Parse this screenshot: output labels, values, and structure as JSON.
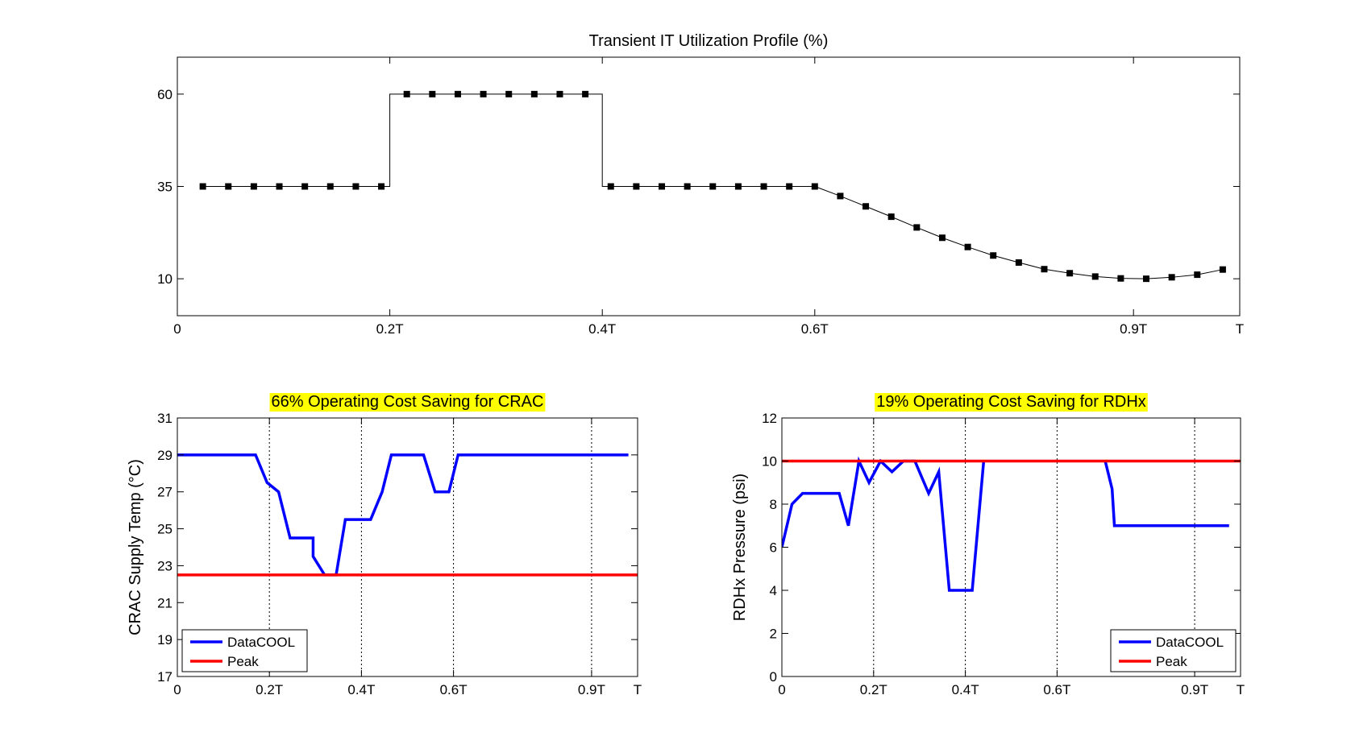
{
  "figure": {
    "background": "#ffffff",
    "colors": {
      "datacool": "#0000ff",
      "peak": "#ff0000",
      "profile": "#000000",
      "highlight": "#ffff00"
    }
  },
  "chart_data": [
    {
      "id": "utilization",
      "type": "line",
      "title": "Transient IT Utilization Profile (%)",
      "title_highlight": false,
      "xlabel": "",
      "ylabel": "",
      "xlim": [
        0,
        1
      ],
      "ylim": [
        0,
        70
      ],
      "xticks": [
        {
          "v": 0,
          "label": "0"
        },
        {
          "v": 0.2,
          "label": "0.2T"
        },
        {
          "v": 0.4,
          "label": "0.4T"
        },
        {
          "v": 0.6,
          "label": "0.6T"
        },
        {
          "v": 0.9,
          "label": "0.9T"
        },
        {
          "v": 1.0,
          "label": "T"
        }
      ],
      "yticks": [
        {
          "v": 10,
          "label": "10"
        },
        {
          "v": 35,
          "label": "35"
        },
        {
          "v": 60,
          "label": "60"
        }
      ],
      "grid": false,
      "vgrid": [],
      "series": [
        {
          "name": "",
          "color": "#000000",
          "width": 1,
          "marker": "square",
          "line": [
            [
              0.024,
              35
            ],
            [
              0.2,
              35
            ],
            [
              0.2,
              60
            ],
            [
              0.4,
              60
            ],
            [
              0.4,
              35
            ],
            [
              0.6,
              35
            ],
            [
              0.624,
              32.4
            ],
            [
              0.648,
              29.6
            ],
            [
              0.672,
              26.8
            ],
            [
              0.696,
              23.9
            ],
            [
              0.72,
              21.1
            ],
            [
              0.744,
              18.6
            ],
            [
              0.768,
              16.3
            ],
            [
              0.792,
              14.4
            ],
            [
              0.816,
              12.6
            ],
            [
              0.84,
              11.5
            ],
            [
              0.864,
              10.6
            ],
            [
              0.888,
              10.1
            ],
            [
              0.912,
              10.0
            ],
            [
              0.936,
              10.4
            ],
            [
              0.96,
              11.1
            ],
            [
              0.984,
              12.5
            ]
          ],
          "markers": [
            [
              0.024,
              35
            ],
            [
              0.048,
              35
            ],
            [
              0.072,
              35
            ],
            [
              0.096,
              35
            ],
            [
              0.12,
              35
            ],
            [
              0.144,
              35
            ],
            [
              0.168,
              35
            ],
            [
              0.192,
              35
            ],
            [
              0.216,
              60
            ],
            [
              0.24,
              60
            ],
            [
              0.264,
              60
            ],
            [
              0.288,
              60
            ],
            [
              0.312,
              60
            ],
            [
              0.336,
              60
            ],
            [
              0.36,
              60
            ],
            [
              0.384,
              60
            ],
            [
              0.408,
              35
            ],
            [
              0.432,
              35
            ],
            [
              0.456,
              35
            ],
            [
              0.48,
              35
            ],
            [
              0.504,
              35
            ],
            [
              0.528,
              35
            ],
            [
              0.552,
              35
            ],
            [
              0.576,
              35
            ],
            [
              0.6,
              35
            ],
            [
              0.624,
              32.4
            ],
            [
              0.648,
              29.6
            ],
            [
              0.672,
              26.8
            ],
            [
              0.696,
              23.9
            ],
            [
              0.72,
              21.1
            ],
            [
              0.744,
              18.6
            ],
            [
              0.768,
              16.3
            ],
            [
              0.792,
              14.4
            ],
            [
              0.816,
              12.6
            ],
            [
              0.84,
              11.5
            ],
            [
              0.864,
              10.6
            ],
            [
              0.888,
              10.1
            ],
            [
              0.912,
              10.0
            ],
            [
              0.936,
              10.4
            ],
            [
              0.96,
              11.1
            ],
            [
              0.984,
              12.5
            ]
          ]
        }
      ],
      "legend": null
    },
    {
      "id": "crac",
      "type": "line",
      "title": "66% Operating Cost Saving for CRAC",
      "title_highlight": true,
      "xlabel": "",
      "ylabel": "CRAC Supply Temp (°C)",
      "xlim": [
        0,
        1
      ],
      "ylim": [
        17,
        31
      ],
      "xticks": [
        {
          "v": 0,
          "label": "0"
        },
        {
          "v": 0.2,
          "label": "0.2T"
        },
        {
          "v": 0.4,
          "label": "0.4T"
        },
        {
          "v": 0.6,
          "label": "0.6T"
        },
        {
          "v": 0.9,
          "label": "0.9T"
        },
        {
          "v": 1.0,
          "label": "T"
        }
      ],
      "yticks": [
        {
          "v": 17,
          "label": "17"
        },
        {
          "v": 19,
          "label": "19"
        },
        {
          "v": 21,
          "label": "21"
        },
        {
          "v": 23,
          "label": "23"
        },
        {
          "v": 25,
          "label": "25"
        },
        {
          "v": 27,
          "label": "27"
        },
        {
          "v": 29,
          "label": "29"
        },
        {
          "v": 31,
          "label": "31"
        }
      ],
      "grid": false,
      "vgrid": [
        0.2,
        0.4,
        0.6,
        0.9
      ],
      "series": [
        {
          "name": "DataCOOL",
          "color": "#0000ff",
          "width": 3.5,
          "marker": "none",
          "line": [
            [
              0,
              29
            ],
            [
              0.17,
              29
            ],
            [
              0.195,
              27.5
            ],
            [
              0.22,
              27
            ],
            [
              0.245,
              24.5
            ],
            [
              0.295,
              24.5
            ],
            [
              0.295,
              23.5
            ],
            [
              0.32,
              22.5
            ],
            [
              0.345,
              22.5
            ],
            [
              0.365,
              25.5
            ],
            [
              0.42,
              25.5
            ],
            [
              0.445,
              27
            ],
            [
              0.465,
              29
            ],
            [
              0.535,
              29
            ],
            [
              0.56,
              27
            ],
            [
              0.59,
              27
            ],
            [
              0.61,
              29
            ],
            [
              0.98,
              29
            ]
          ]
        },
        {
          "name": "Peak",
          "color": "#ff0000",
          "width": 3.5,
          "marker": "none",
          "line": [
            [
              0,
              22.5
            ],
            [
              1,
              22.5
            ]
          ]
        }
      ],
      "legend": {
        "placement": "bottom-left",
        "entries": [
          "DataCOOL",
          "Peak"
        ]
      }
    },
    {
      "id": "rdhx",
      "type": "line",
      "title": "19% Operating Cost Saving for RDHx",
      "title_highlight": true,
      "xlabel": "",
      "ylabel": "RDHx Pressure (psi)",
      "xlim": [
        0,
        1
      ],
      "ylim": [
        0,
        12
      ],
      "xticks": [
        {
          "v": 0,
          "label": "0"
        },
        {
          "v": 0.2,
          "label": "0.2T"
        },
        {
          "v": 0.4,
          "label": "0.4T"
        },
        {
          "v": 0.6,
          "label": "0.6T"
        },
        {
          "v": 0.9,
          "label": "0.9T"
        },
        {
          "v": 1.0,
          "label": "T"
        }
      ],
      "yticks": [
        {
          "v": 0,
          "label": "0"
        },
        {
          "v": 2,
          "label": "2"
        },
        {
          "v": 4,
          "label": "4"
        },
        {
          "v": 6,
          "label": "6"
        },
        {
          "v": 8,
          "label": "8"
        },
        {
          "v": 10,
          "label": "10"
        },
        {
          "v": 12,
          "label": "12"
        }
      ],
      "grid": false,
      "vgrid": [
        0.2,
        0.4,
        0.6,
        0.9
      ],
      "series": [
        {
          "name": "DataCOOL",
          "color": "#0000ff",
          "width": 3.5,
          "marker": "none",
          "line": [
            [
              0,
              6
            ],
            [
              0.022,
              8
            ],
            [
              0.045,
              8.5
            ],
            [
              0.125,
              8.5
            ],
            [
              0.145,
              7
            ],
            [
              0.168,
              10
            ],
            [
              0.19,
              9
            ],
            [
              0.215,
              10
            ],
            [
              0.24,
              9.5
            ],
            [
              0.265,
              10
            ],
            [
              0.29,
              10
            ],
            [
              0.32,
              8.5
            ],
            [
              0.342,
              9.5
            ],
            [
              0.365,
              4
            ],
            [
              0.415,
              4
            ],
            [
              0.44,
              10
            ],
            [
              0.44,
              10
            ]
          ]
        },
        {
          "name": "",
          "color": "#0000ff",
          "width": 3.5,
          "marker": "none",
          "line": [
            [
              0.705,
              10
            ],
            [
              0.72,
              8.7
            ],
            [
              0.725,
              7
            ],
            [
              0.975,
              7
            ]
          ]
        },
        {
          "name": "Peak",
          "color": "#ff0000",
          "width": 3.5,
          "marker": "none",
          "line": [
            [
              0,
              10
            ],
            [
              1,
              10
            ]
          ]
        }
      ],
      "legend": {
        "placement": "bottom-right",
        "entries": [
          "DataCOOL",
          "Peak"
        ]
      }
    }
  ]
}
